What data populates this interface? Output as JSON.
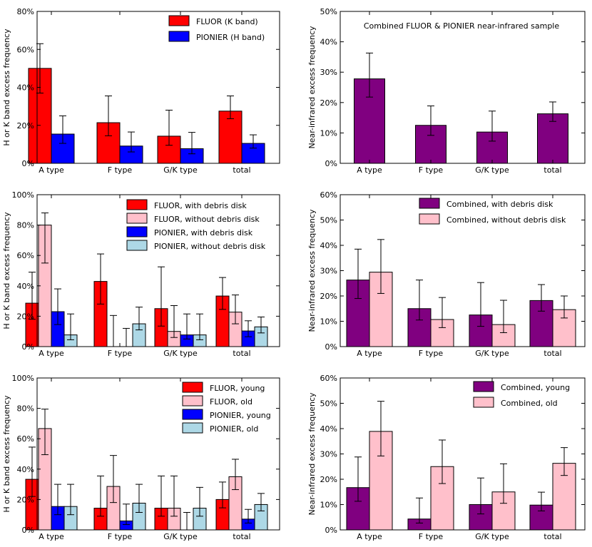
{
  "chart_data": [
    {
      "type": "bar",
      "ylabel": "H or K band excess frequency",
      "ylim": [
        0,
        80
      ],
      "yticks": [
        0,
        20,
        40,
        60,
        80
      ],
      "categories": [
        "A type",
        "F type",
        "G/K type",
        "total"
      ],
      "legend_position": "top-right",
      "series": [
        {
          "name": "FLUOR (K band)",
          "color": "#ff0000",
          "values": [
            50,
            21.4,
            14.3,
            27.5
          ],
          "err_low": [
            37,
            14.5,
            9.5,
            23.5
          ],
          "err_high": [
            63,
            35.5,
            28,
            35.5
          ]
        },
        {
          "name": "PIONIER (H band)",
          "color": "#0000ff",
          "values": [
            15.4,
            9.1,
            7.7,
            10.5
          ],
          "err_low": [
            10.5,
            6,
            5,
            8
          ],
          "err_high": [
            25,
            16.5,
            16.3,
            15
          ]
        }
      ]
    },
    {
      "type": "bar",
      "ylabel": "Near-infrared excess frequency",
      "ylim": [
        0,
        50
      ],
      "yticks": [
        0,
        10,
        20,
        30,
        40,
        50
      ],
      "categories": [
        "A type",
        "F type",
        "G/K type",
        "total"
      ],
      "annotation": "Combined FLUOR & PIONIER near-infrared sample",
      "series": [
        {
          "name": "Combined",
          "color": "#800080",
          "values": [
            27.8,
            12.5,
            10.3,
            16.3
          ],
          "err_low": [
            21.8,
            9.2,
            7.3,
            13.8
          ],
          "err_high": [
            36.3,
            18.9,
            17.2,
            20.2
          ]
        }
      ]
    },
    {
      "type": "bar",
      "ylabel": "H or K band excess frequency",
      "ylim": [
        0,
        100
      ],
      "yticks": [
        0,
        20,
        40,
        60,
        80,
        100
      ],
      "categories": [
        "A type",
        "F type",
        "G/K type",
        "total"
      ],
      "legend_position": "top-right",
      "series": [
        {
          "name": "FLUOR, with debris disk",
          "color": "#ff0000",
          "values": [
            28.6,
            42.9,
            25,
            33.3
          ],
          "err_low": [
            18,
            28,
            13.5,
            24.5
          ],
          "err_high": [
            49,
            61,
            52.5,
            45.5
          ]
        },
        {
          "name": "FLUOR, without debris disk",
          "color": "#ffc0cb",
          "values": [
            80,
            0,
            10,
            22.7
          ],
          "err_low": [
            55,
            0,
            6,
            15
          ],
          "err_high": [
            88,
            20.5,
            27,
            34
          ]
        },
        {
          "name": "PIONIER, with debris disk",
          "color": "#0000ff",
          "values": [
            23,
            0,
            7.7,
            10.3
          ],
          "err_low": [
            14.5,
            0,
            5,
            6.5
          ],
          "err_high": [
            38,
            12,
            21.5,
            17
          ]
        },
        {
          "name": "PIONIER, without debris disk",
          "color": "#add8e6",
          "values": [
            7.7,
            15,
            7.7,
            13
          ],
          "err_low": [
            4.5,
            11,
            4.5,
            9
          ],
          "err_high": [
            21.5,
            26,
            21.5,
            19.5
          ]
        }
      ]
    },
    {
      "type": "bar",
      "ylabel": "Near-infrared excess frequency",
      "ylim": [
        0,
        60
      ],
      "yticks": [
        0,
        10,
        20,
        30,
        40,
        50,
        60
      ],
      "categories": [
        "A type",
        "F type",
        "G/K type",
        "total"
      ],
      "legend_position": "top-right",
      "series": [
        {
          "name": "Combined, with debris disk",
          "color": "#800080",
          "values": [
            26.3,
            15,
            12.5,
            18.2
          ],
          "err_low": [
            19,
            10.5,
            8,
            14
          ],
          "err_high": [
            38.5,
            26.3,
            25.3,
            24.5
          ]
        },
        {
          "name": "Combined, without debris disk",
          "color": "#ffc0cb",
          "values": [
            29.4,
            10.7,
            8.7,
            14.6
          ],
          "err_low": [
            21,
            7.5,
            5.5,
            11.3
          ],
          "err_high": [
            42.3,
            19.4,
            18.3,
            20
          ]
        }
      ]
    },
    {
      "type": "bar",
      "ylabel": "H or K band excess frequency",
      "ylim": [
        0,
        100
      ],
      "yticks": [
        0,
        20,
        40,
        60,
        80,
        100
      ],
      "categories": [
        "A type",
        "F type",
        "G/K type",
        "total"
      ],
      "legend_position": "top-right",
      "series": [
        {
          "name": "FLUOR, young",
          "color": "#ff0000",
          "values": [
            33.3,
            14.3,
            14.3,
            20
          ],
          "err_low": [
            22,
            9,
            9,
            14.5
          ],
          "err_high": [
            54.5,
            35.5,
            35.5,
            31.5
          ]
        },
        {
          "name": "FLUOR, old",
          "color": "#ffc0cb",
          "values": [
            66.7,
            28.6,
            14.3,
            35
          ],
          "err_low": [
            49.5,
            18,
            9,
            26.5
          ],
          "err_high": [
            79.5,
            49,
            35.5,
            46.5
          ]
        },
        {
          "name": "PIONIER, young",
          "color": "#0000ff",
          "values": [
            15.4,
            5.9,
            0,
            7.1
          ],
          "err_low": [
            10,
            3.5,
            0,
            4.5
          ],
          "err_high": [
            30,
            17,
            11.5,
            13.5
          ]
        },
        {
          "name": "PIONIER, old",
          "color": "#add8e6",
          "values": [
            15.4,
            17.6,
            14.3,
            16.7
          ],
          "err_low": [
            10,
            11.5,
            9,
            12.5
          ],
          "err_high": [
            30,
            30,
            28,
            24
          ]
        }
      ]
    },
    {
      "type": "bar",
      "ylabel": "Near-infrared excess frequency",
      "ylim": [
        0,
        60
      ],
      "yticks": [
        0,
        10,
        20,
        30,
        40,
        50,
        60
      ],
      "categories": [
        "A type",
        "F type",
        "G/K type",
        "total"
      ],
      "legend_position": "top-left",
      "series": [
        {
          "name": "Combined, young",
          "color": "#800080",
          "values": [
            16.7,
            4.3,
            10,
            9.8
          ],
          "err_low": [
            11.3,
            2.7,
            6.3,
            7.5
          ],
          "err_high": [
            28.8,
            12.6,
            20.5,
            14.9
          ]
        },
        {
          "name": "Combined, old",
          "color": "#ffc0cb",
          "values": [
            38.9,
            25,
            15,
            26.3
          ],
          "err_low": [
            29.2,
            18.3,
            10.5,
            21.5
          ],
          "err_high": [
            50.8,
            35.5,
            26.1,
            32.5
          ]
        }
      ]
    }
  ]
}
